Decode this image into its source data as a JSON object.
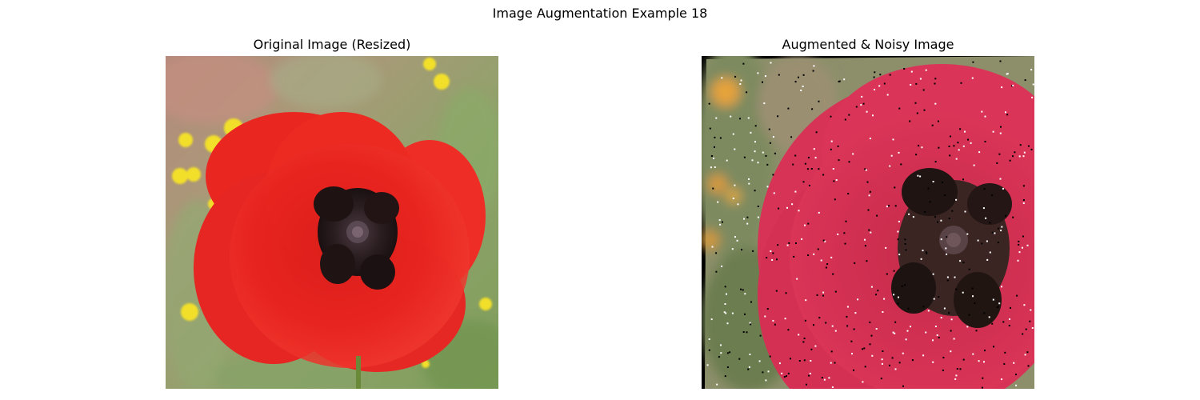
{
  "figure": {
    "suptitle": "Image Augmentation Example 18"
  },
  "panels": [
    {
      "title": "Original Image (Resized)",
      "image_subject": "red-poppy-flower"
    },
    {
      "title": "Augmented & Noisy Image",
      "image_subject": "red-poppy-flower-augmented-noisy"
    }
  ]
}
